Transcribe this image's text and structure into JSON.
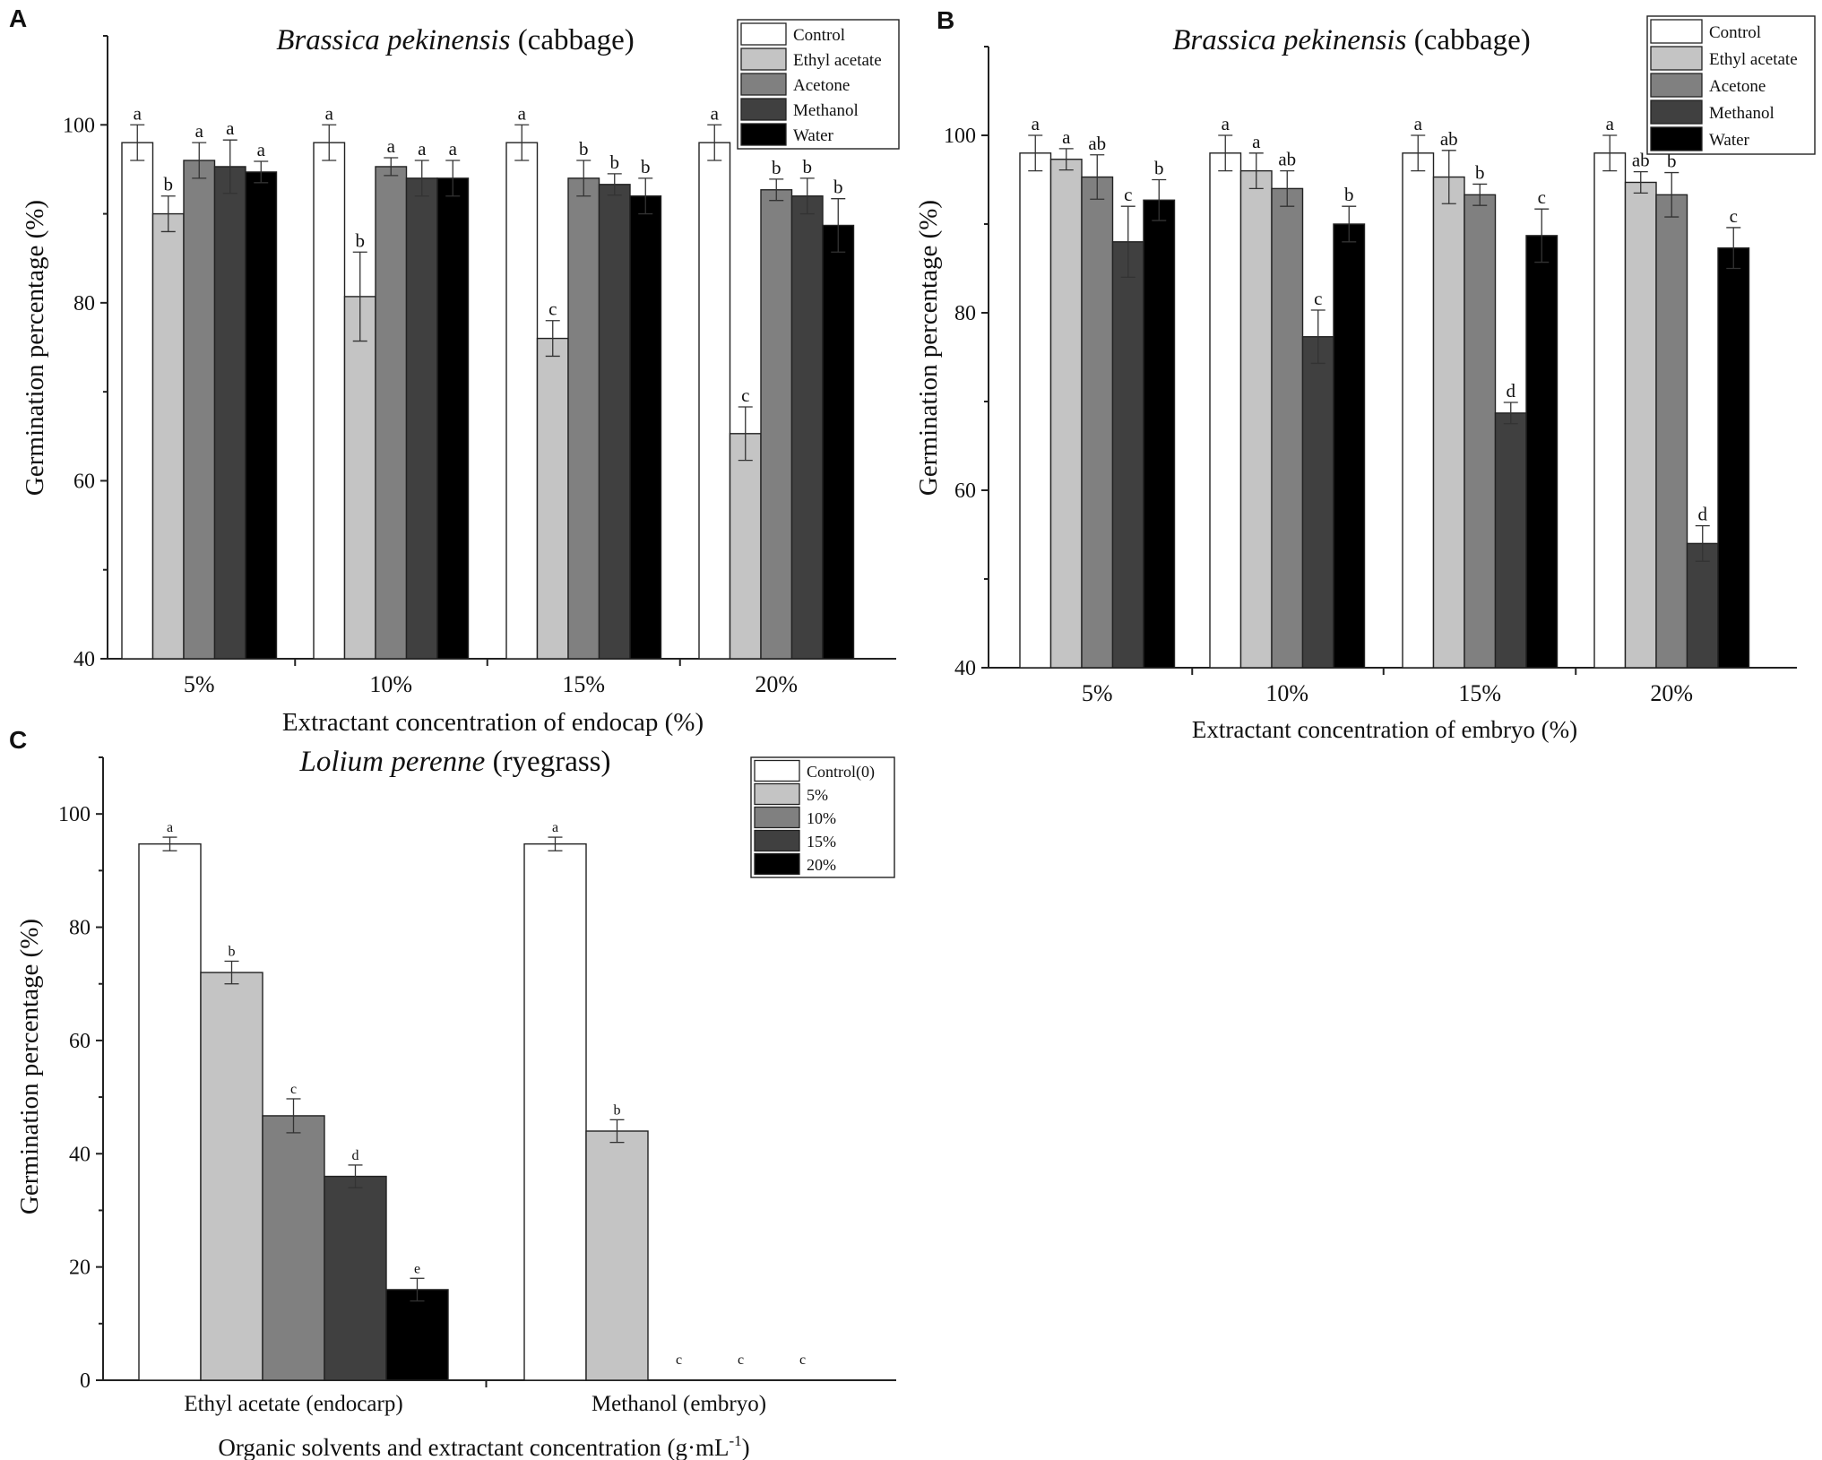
{
  "chart_data": [
    {
      "type": "bar",
      "panel_label": "A",
      "title_italic": "Brassica pekinensis",
      "title_plain": " (cabbage)",
      "xlabel": "Extractant concentration of endocap (%)",
      "ylabel": "Germination percentage (%)",
      "ylim": [
        40,
        110
      ],
      "yticks": [
        40,
        60,
        80,
        100
      ],
      "legend_position": "top-right",
      "categories": [
        "5%",
        "10%",
        "15%",
        "20%"
      ],
      "series": [
        {
          "name": "Control",
          "color": "#ffffff",
          "values": [
            98,
            98,
            98,
            98
          ],
          "errors": [
            2,
            2,
            2,
            2
          ],
          "letters": [
            "a",
            "a",
            "a",
            "a"
          ]
        },
        {
          "name": "Ethyl acetate",
          "color": "#c4c4c4",
          "values": [
            90,
            80.7,
            76,
            65.3
          ],
          "errors": [
            2,
            5,
            2,
            3
          ],
          "letters": [
            "b",
            "b",
            "c",
            "c"
          ]
        },
        {
          "name": "Acetone",
          "color": "#808080",
          "values": [
            96,
            95.3,
            94,
            92.7
          ],
          "errors": [
            2,
            1,
            2,
            1.2
          ],
          "letters": [
            "a",
            "a",
            "b",
            "b"
          ]
        },
        {
          "name": "Methanol",
          "color": "#404040",
          "values": [
            95.3,
            94,
            93.3,
            92
          ],
          "errors": [
            3,
            2,
            1.2,
            2
          ],
          "letters": [
            "a",
            "a",
            "b",
            "b"
          ]
        },
        {
          "name": "Water",
          "color": "#000000",
          "values": [
            94.7,
            94,
            92,
            88.7
          ],
          "errors": [
            1.2,
            2,
            2,
            3
          ],
          "letters": [
            "a",
            "a",
            "b",
            "b"
          ]
        }
      ]
    },
    {
      "type": "bar",
      "panel_label": "B",
      "title_italic": "Brassica pekinensis",
      "title_plain": " (cabbage)",
      "xlabel": "Extractant concentration of embryo (%)",
      "ylabel": "Germination percentage (%)",
      "ylim": [
        40,
        110
      ],
      "yticks": [
        40,
        60,
        80,
        100
      ],
      "legend_position": "top-right",
      "categories": [
        "5%",
        "10%",
        "15%",
        "20%"
      ],
      "series": [
        {
          "name": "Control",
          "color": "#ffffff",
          "values": [
            98,
            98,
            98,
            98
          ],
          "errors": [
            2,
            2,
            2,
            2
          ],
          "letters": [
            "a",
            "a",
            "a",
            "a"
          ]
        },
        {
          "name": "Ethyl acetate",
          "color": "#c4c4c4",
          "values": [
            97.3,
            96,
            95.3,
            94.7
          ],
          "errors": [
            1.2,
            2,
            3,
            1.2
          ],
          "letters": [
            "a",
            "a",
            "ab",
            "ab"
          ]
        },
        {
          "name": "Acetone",
          "color": "#808080",
          "values": [
            95.3,
            94,
            93.3,
            93.3
          ],
          "errors": [
            2.5,
            2,
            1.2,
            2.5
          ],
          "letters": [
            "ab",
            "ab",
            "b",
            "b"
          ]
        },
        {
          "name": "Methanol",
          "color": "#404040",
          "values": [
            88,
            77.3,
            68.7,
            54
          ],
          "errors": [
            4,
            3,
            1.2,
            2
          ],
          "letters": [
            "c",
            "c",
            "d",
            "d"
          ]
        },
        {
          "name": "Water",
          "color": "#000000",
          "values": [
            92.7,
            90,
            88.7,
            87.3
          ],
          "errors": [
            2.3,
            2,
            3,
            2.3
          ],
          "letters": [
            "b",
            "b",
            "c",
            "c"
          ]
        }
      ]
    },
    {
      "type": "bar",
      "panel_label": "C",
      "title_italic": "Lolium perenne",
      "title_plain": " (ryegrass)",
      "xlabel": "Organic solvents and extractant concentration (g·mL",
      "xlabel_sup": "-1",
      "xlabel_end": ")",
      "ylabel": "Germination percentage (%)",
      "ylim": [
        0,
        110
      ],
      "yticks": [
        0,
        20,
        40,
        60,
        80,
        100
      ],
      "legend_position": "top-right",
      "categories": [
        "Ethyl acetate (endocarp)",
        "Methanol (embryo)"
      ],
      "series": [
        {
          "name": "Control(0)",
          "color": "#ffffff",
          "values": [
            94.7,
            94.7
          ],
          "errors": [
            1.2,
            1.2
          ],
          "letters": [
            "a",
            "a"
          ]
        },
        {
          "name": "5%",
          "color": "#c4c4c4",
          "values": [
            72,
            44
          ],
          "errors": [
            2,
            2
          ],
          "letters": [
            "b",
            "b"
          ]
        },
        {
          "name": "10%",
          "color": "#808080",
          "values": [
            46.7,
            0
          ],
          "errors": [
            3,
            0
          ],
          "letters": [
            "c",
            "c"
          ]
        },
        {
          "name": "15%",
          "color": "#404040",
          "values": [
            36,
            0
          ],
          "errors": [
            2,
            0
          ],
          "letters": [
            "d",
            "c"
          ]
        },
        {
          "name": "20%",
          "color": "#000000",
          "values": [
            16,
            0
          ],
          "errors": [
            2,
            0
          ],
          "letters": [
            "e",
            "c"
          ]
        }
      ]
    }
  ]
}
